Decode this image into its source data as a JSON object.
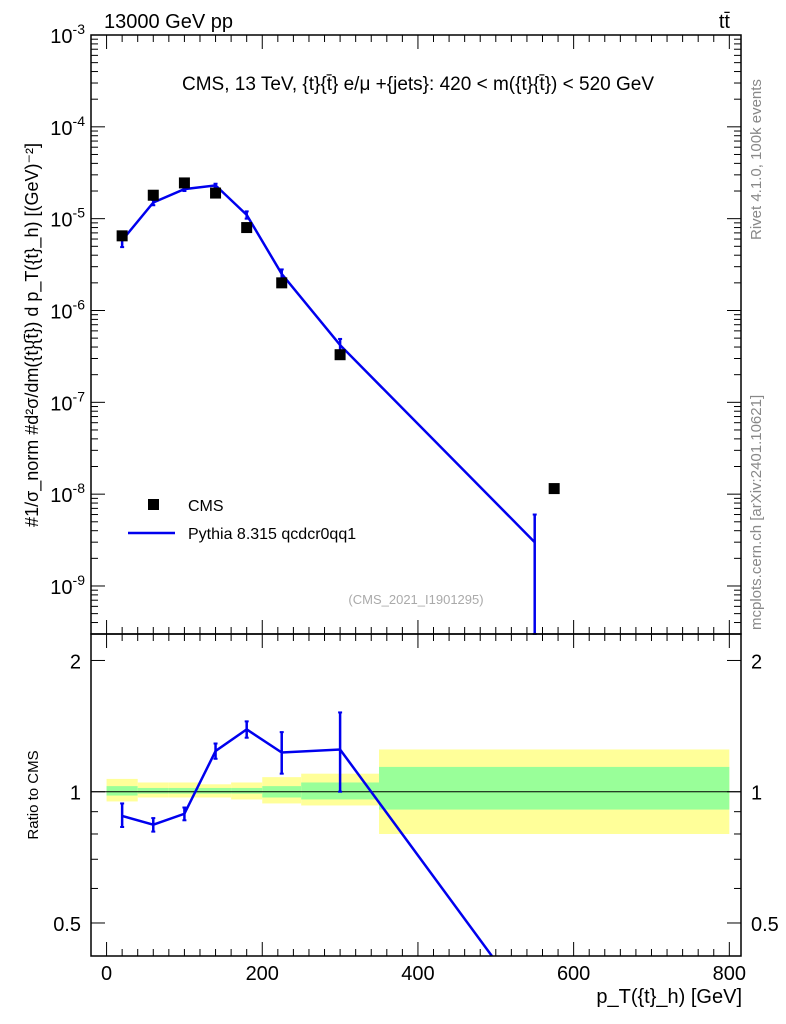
{
  "header": {
    "left": "13000 GeV pp",
    "right": "tt̄"
  },
  "side_labels": {
    "rivet": "Rivet 4.1.0,  100k events",
    "mcplots": "mcplots.cern.ch [arXiv:2401.10621]"
  },
  "chart_data": [
    {
      "panel": "main",
      "type": "scatter",
      "title": "CMS, 13 TeV, {t}{t̄} e/μ +{jets}: 420 < m({t}{t̄}) < 520 GeV",
      "ylabel": "#1/σ_norm #d²σ/dm({t}{t̄}) d p_T({t}_h) [(GeV)⁻²]",
      "xlabel": "p_T({t}_h) [GeV]",
      "xlim": [
        -20,
        815
      ],
      "ylim": [
        3e-10,
        0.001
      ],
      "yscale": "log",
      "yticks": [
        {
          "v": 1e-09,
          "m": "10",
          "e": "-9"
        },
        {
          "v": 1e-08,
          "m": "10",
          "e": "-8"
        },
        {
          "v": 1e-07,
          "m": "10",
          "e": "-7"
        },
        {
          "v": 1e-06,
          "m": "10",
          "e": "-6"
        },
        {
          "v": 1e-05,
          "m": "10",
          "e": "-5"
        },
        {
          "v": 0.0001,
          "m": "10",
          "e": "-4"
        },
        {
          "v": 0.001,
          "m": "10",
          "e": "-3"
        }
      ],
      "watermark": "(CMS_2021_I1901295)",
      "legend": {
        "position": "bottom-left",
        "entries": [
          "CMS",
          "Pythia 8.315 qcdcr0qq1"
        ]
      },
      "series": [
        {
          "name": "CMS",
          "kind": "markers",
          "color": "#000000",
          "x": [
            20,
            60,
            100,
            140,
            180,
            225,
            300,
            575
          ],
          "y": [
            6.5e-06,
            1.8e-05,
            2.45e-05,
            1.9e-05,
            8e-06,
            2e-06,
            3.3e-07,
            1.15e-08
          ]
        },
        {
          "name": "Pythia 8.315 qcdcr0qq1",
          "kind": "line",
          "color": "#0000ee",
          "x": [
            20,
            60,
            100,
            140,
            180,
            225,
            300,
            550
          ],
          "y": [
            5.8e-06,
            1.5e-05,
            2.1e-05,
            2.3e-05,
            1.1e-05,
            2.5e-06,
            4.2e-07,
            3e-09
          ],
          "err_low": [
            4.9e-06,
            1.4e-05,
            2e-05,
            2.2e-05,
            1e-05,
            2.2e-06,
            3.6e-07,
            1e-11
          ],
          "err_high": [
            6.7e-06,
            1.6e-05,
            2.2e-05,
            2.4e-05,
            1.2e-05,
            2.8e-06,
            4.9e-07,
            6e-09
          ]
        }
      ]
    },
    {
      "panel": "ratio",
      "type": "line",
      "ylabel": "Ratio to CMS",
      "xlim": [
        -20,
        815
      ],
      "ylim": [
        0.42,
        2.3
      ],
      "yscale": "log",
      "yticks": [
        0.5,
        1,
        2
      ],
      "xticks": [
        0,
        200,
        400,
        600,
        800
      ],
      "bands": {
        "edges": [
          0,
          40,
          80,
          120,
          160,
          200,
          250,
          350,
          800
        ],
        "green": [
          [
            0.98,
            1.03
          ],
          [
            0.99,
            1.02
          ],
          [
            0.99,
            1.02
          ],
          [
            0.99,
            1.02
          ],
          [
            0.99,
            1.02
          ],
          [
            0.97,
            1.03
          ],
          [
            0.96,
            1.05
          ],
          [
            0.91,
            1.14
          ]
        ],
        "yellow": [
          [
            0.95,
            1.07
          ],
          [
            0.97,
            1.05
          ],
          [
            0.97,
            1.05
          ],
          [
            0.97,
            1.04
          ],
          [
            0.96,
            1.05
          ],
          [
            0.94,
            1.08
          ],
          [
            0.93,
            1.1
          ],
          [
            0.8,
            1.25
          ]
        ]
      },
      "series": [
        {
          "name": "Pythia 8.315 qcdcr0qq1",
          "color": "#0000ee",
          "x": [
            20,
            60,
            100,
            140,
            180,
            225,
            300,
            495
          ],
          "y": [
            0.88,
            0.84,
            0.89,
            1.24,
            1.39,
            1.23,
            1.25,
            0.42
          ],
          "err_low": [
            0.83,
            0.81,
            0.86,
            1.19,
            1.33,
            1.1,
            1.0,
            null
          ],
          "err_high": [
            0.94,
            0.87,
            0.92,
            1.29,
            1.45,
            1.37,
            1.52,
            null
          ]
        }
      ]
    }
  ]
}
